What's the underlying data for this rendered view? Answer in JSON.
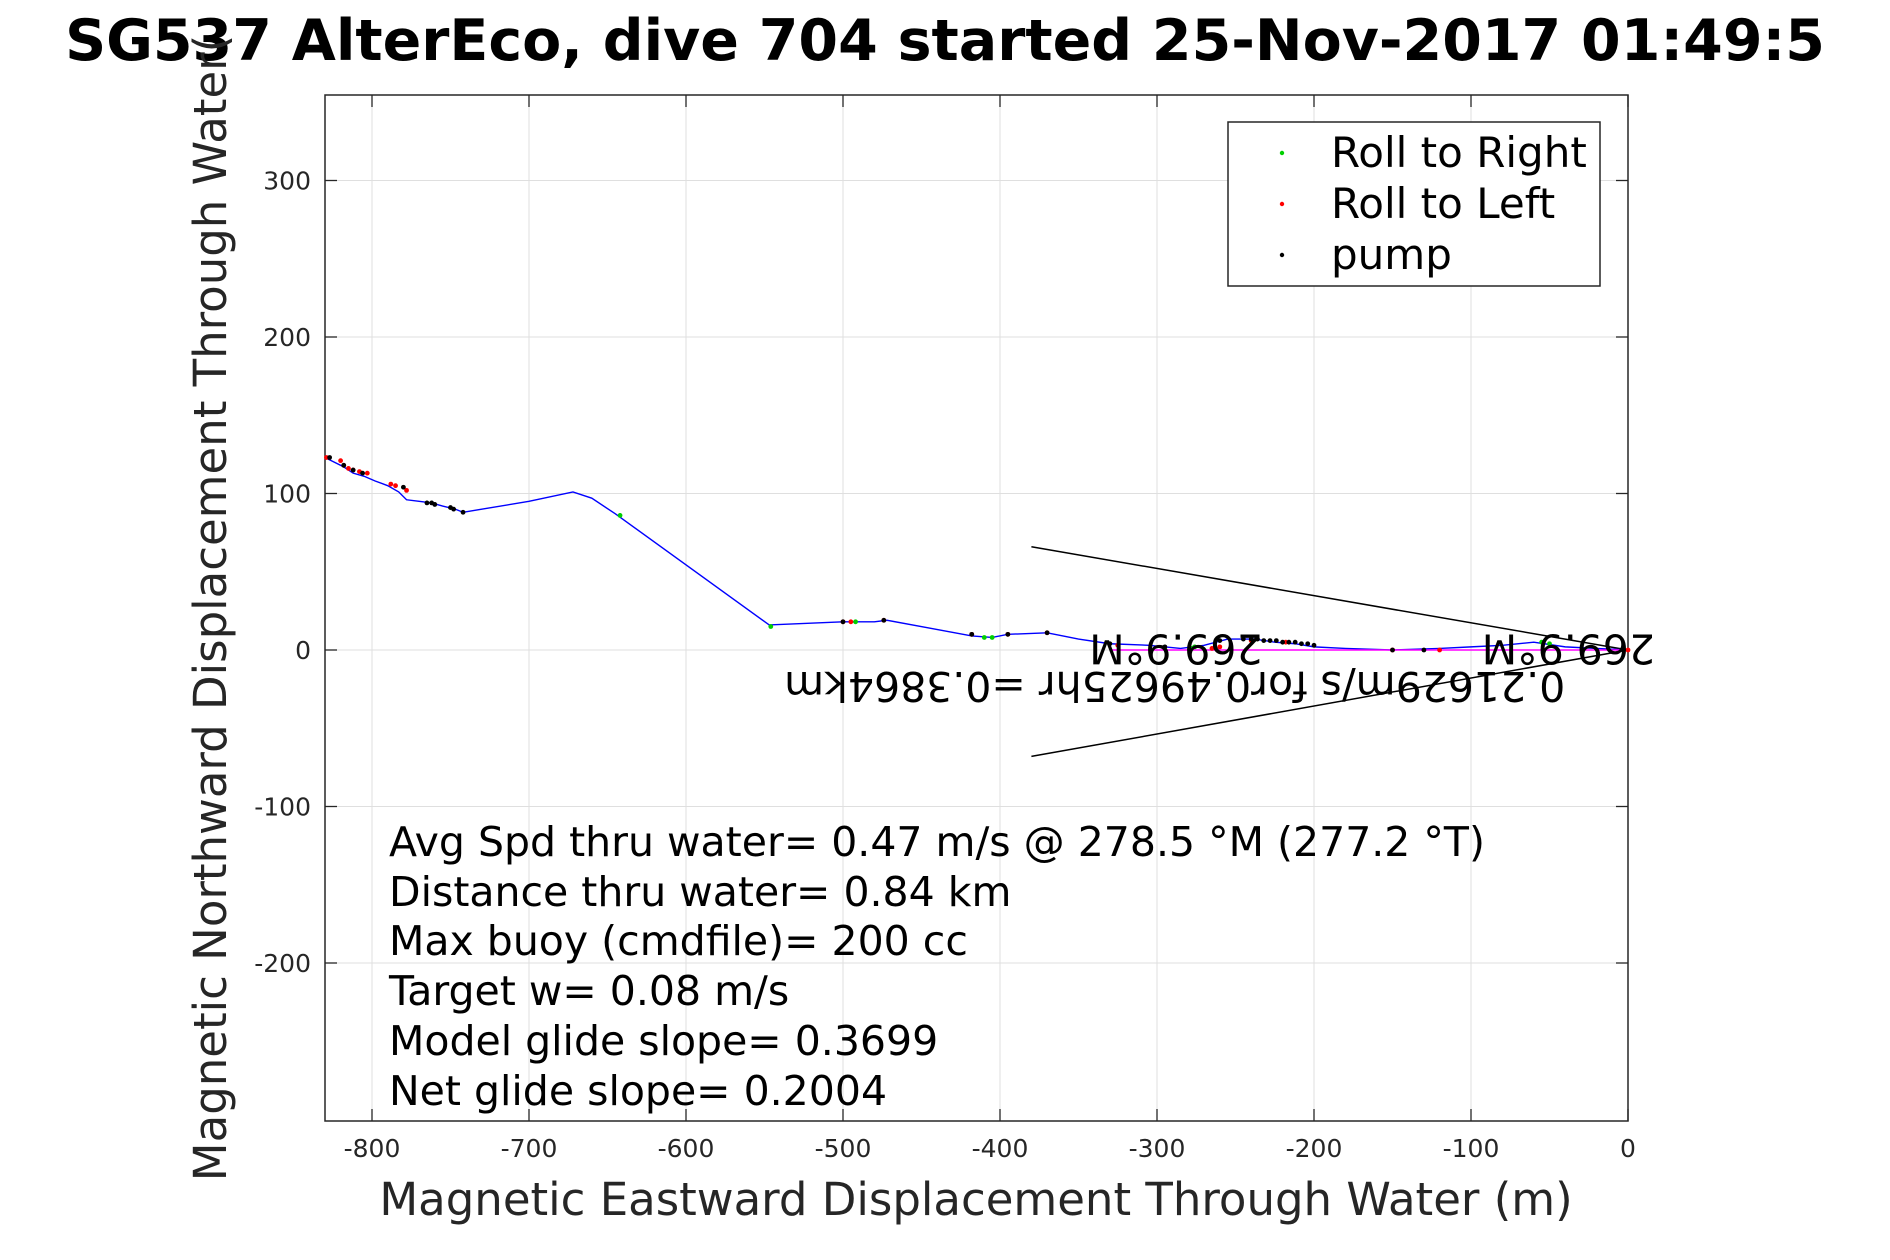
{
  "chart_data": {
    "type": "line",
    "title": "SG537 AlterEco, dive 704 started 25-Nov-2017 01:49:5",
    "xlabel": "Magnetic Eastward Displacement Through Water (m)",
    "ylabel": "Magnetic Northward Displacement Through Water(",
    "xlim": [
      -830,
      0
    ],
    "ylim": [
      -300,
      355
    ],
    "xticks": [
      -800,
      -700,
      -600,
      -500,
      -400,
      -300,
      -200,
      -100,
      0
    ],
    "yticks": [
      -200,
      -100,
      0,
      100,
      200,
      300
    ],
    "grid": true,
    "legend_position": "top-right",
    "series": [
      {
        "name": "track",
        "color": "#0000ff",
        "x": [
          -830,
          -818,
          -812,
          -805,
          -798,
          -790,
          -783,
          -778,
          -770,
          -762,
          -755,
          -747,
          -742,
          -700,
          -672,
          -660,
          -645,
          -547,
          -500,
          -490,
          -480,
          -472,
          -445,
          -418,
          -405,
          -395,
          -370,
          -350,
          -330,
          -305,
          -285,
          -270,
          -255,
          -238,
          -225,
          -212,
          -200,
          -180,
          -150,
          -120,
          -100,
          -80,
          -60,
          -40,
          -20,
          0
        ],
        "y": [
          123,
          117,
          113,
          111,
          108,
          105,
          101,
          96,
          95,
          94,
          92,
          90,
          88,
          95,
          101,
          97,
          87,
          16,
          18,
          18,
          18,
          19,
          14,
          9,
          8,
          10,
          11,
          7,
          4,
          3,
          1,
          3,
          7,
          7,
          5,
          4,
          2,
          1,
          0,
          1,
          2,
          3,
          5,
          2,
          1,
          0
        ]
      },
      {
        "name": "Roll to Right",
        "color": "#00d000",
        "x": [
          -642,
          -546,
          -492,
          -410,
          -405,
          -278,
          -276,
          -55,
          -50
        ],
        "y": [
          86,
          15,
          18,
          8,
          8,
          1,
          2,
          5,
          4
        ]
      },
      {
        "name": "Roll to Left",
        "color": "#ff0000",
        "x": [
          -829,
          -820,
          -818,
          -815,
          -812,
          -808,
          -803,
          -788,
          -785,
          -778,
          -500,
          -495,
          -474,
          -418,
          -395,
          -370,
          -325,
          -265,
          -260,
          -240,
          -218,
          -150,
          -120,
          0
        ],
        "y": [
          123,
          121,
          118,
          116,
          115,
          114,
          113,
          106,
          105,
          102,
          18,
          18,
          19,
          10,
          10,
          11,
          3,
          1,
          2,
          6,
          5,
          0,
          0,
          0
        ]
      },
      {
        "name": "pump",
        "color": "#000000",
        "x": [
          -827,
          -818,
          -812,
          -806,
          -780,
          -765,
          -762,
          -760,
          -750,
          -748,
          -742,
          -500,
          -474,
          -418,
          -395,
          -370,
          -330,
          -295,
          -260,
          -245,
          -240,
          -236,
          -232,
          -228,
          -224,
          -220,
          -216,
          -212,
          -208,
          -204,
          -200,
          -150,
          -130
        ],
        "y": [
          123,
          118,
          115,
          113,
          104,
          94,
          94,
          93,
          91,
          90,
          88,
          18,
          19,
          10,
          10,
          11,
          4,
          2,
          6,
          7,
          7,
          7,
          6,
          6,
          6,
          5,
          5,
          5,
          4,
          4,
          3,
          0,
          0
        ]
      }
    ],
    "heading_lines": [
      {
        "x": [
          -380,
          0
        ],
        "y": [
          66,
          0
        ]
      },
      {
        "x": [
          -380,
          0
        ],
        "y": [
          -68,
          0
        ]
      }
    ],
    "current_vector": {
      "color": "#ff00ff",
      "x": [
        -330,
        0
      ],
      "y": [
        0,
        0
      ]
    },
    "annotations": [
      {
        "text": "269.9°M",
        "x": -288,
        "y": 10
      },
      {
        "text": "269.9°M",
        "x": -38,
        "y": 10
      },
      {
        "text": "0.21629m/s for0.49625hr =0.3864km",
        "x": -40,
        "y": -14
      }
    ],
    "legend": [
      "Roll to Right",
      "Roll to Left",
      "pump"
    ],
    "stats": [
      "Avg Spd thru water=  0.47 m/s @ 278.5 °M (277.2 °T)",
      "Distance thru water=  0.84 km",
      "Max buoy (cmdfile)= 200 cc",
      "Target w= 0.08 m/s",
      "Model glide slope= 0.3699",
      "Net glide slope= 0.2004"
    ]
  }
}
